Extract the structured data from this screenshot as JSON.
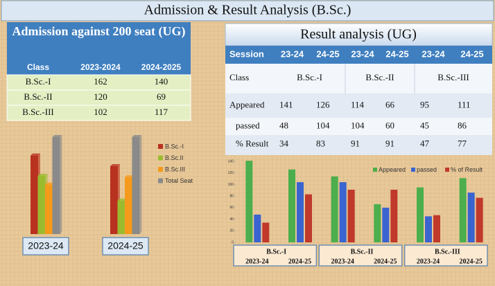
{
  "title": "Admission & Result Analysis (B.Sc.)",
  "admission": {
    "title": "Admission against 200 seat (UG)",
    "columns": [
      "Class",
      "2023-2024",
      "2024-2025"
    ],
    "rows": [
      [
        "B.Sc.-I",
        162,
        140
      ],
      [
        "B.Sc.-II",
        120,
        69
      ],
      [
        "B.Sc.-III",
        102,
        117
      ]
    ]
  },
  "result": {
    "title": "Result analysis (UG)",
    "header": [
      "Session",
      "23-24",
      "24-25",
      "23-24",
      "24-25",
      "23-24",
      "24-25"
    ],
    "class_label": "Class",
    "classes": [
      "B.Sc.-I",
      "B.Sc.-II",
      "B.Sc.-III"
    ],
    "rows": [
      {
        "label": "Appeared",
        "values": [
          141,
          126,
          114,
          66,
          95,
          111
        ]
      },
      {
        "label": "passed",
        "values": [
          48,
          104,
          104,
          60,
          45,
          86
        ]
      },
      {
        "label": "% Result",
        "values": [
          34,
          83,
          91,
          91,
          47,
          77
        ]
      }
    ]
  },
  "chart_data": [
    {
      "type": "bar3d",
      "categories": [
        "2023-24",
        "2024-25"
      ],
      "series": [
        {
          "name": "B.Sc.-I",
          "color": "#b8321f",
          "values": [
            162,
            140
          ]
        },
        {
          "name": "B.Sc.II",
          "color": "#9bbb2f",
          "values": [
            120,
            69
          ]
        },
        {
          "name": "B.Sc.III",
          "color": "#f59a1b",
          "values": [
            102,
            117
          ]
        },
        {
          "name": "Total Seat",
          "color": "#8a8a8a",
          "values": [
            200,
            200
          ]
        }
      ]
    },
    {
      "type": "bar",
      "groups": [
        "B.Sc.-I",
        "B.Sc.-II",
        "B.Sc.-III"
      ],
      "categories": [
        "2023-24",
        "2024-25",
        "2023-24",
        "2024-25",
        "2023-24",
        "2024-25"
      ],
      "series": [
        {
          "name": "Appeared",
          "color": "#4cae4c",
          "values": [
            141,
            126,
            114,
            66,
            95,
            111
          ]
        },
        {
          "name": "passed",
          "color": "#3a64d0",
          "values": [
            48,
            104,
            104,
            60,
            45,
            86
          ]
        },
        {
          "name": "% of Result",
          "color": "#c0392b",
          "values": [
            34,
            83,
            91,
            91,
            47,
            77
          ]
        }
      ],
      "ylim": [
        0,
        140
      ],
      "yticks": [
        0,
        20,
        40,
        60,
        80,
        100,
        120,
        140
      ]
    }
  ]
}
